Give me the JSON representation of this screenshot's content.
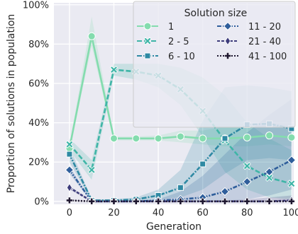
{
  "chart_data": {
    "type": "line",
    "xlabel": "Generation",
    "ylabel": "Proportion of solutions in population",
    "xlim": [
      -7,
      101
    ],
    "ylim": [
      -1.5,
      101
    ],
    "x_ticks": [
      0,
      20,
      40,
      60,
      80,
      100
    ],
    "y_ticks": [
      0,
      20,
      40,
      60,
      80,
      100
    ],
    "y_tick_labels": [
      "0%",
      "20%",
      "40%",
      "60%",
      "80%",
      "100%"
    ],
    "grid": true,
    "background": "#eaeaf2",
    "legend": {
      "title": "Solution size",
      "placement": "top-right",
      "columns": 2
    },
    "x": [
      0,
      10,
      20,
      30,
      40,
      50,
      60,
      70,
      80,
      90,
      100
    ],
    "series": [
      {
        "name": "1",
        "color": "#84dcae",
        "dash": "solid",
        "marker": "circle",
        "values": [
          27,
          84,
          32,
          32,
          32,
          33,
          32,
          32,
          32.5,
          33.5,
          32.5
        ],
        "band_lower": [
          26,
          79,
          31,
          31,
          31,
          30,
          29,
          28,
          28,
          29,
          28
        ],
        "band_upper": [
          28,
          94,
          33,
          33,
          33.5,
          36,
          36,
          38,
          38,
          39,
          38
        ]
      },
      {
        "name": "2 - 5",
        "color": "#3fb5a7",
        "dash": "dashed",
        "marker": "x",
        "values": [
          29,
          16,
          67,
          66,
          64,
          57,
          46,
          31,
          18,
          12,
          9
        ],
        "band_lower": [
          26,
          11,
          64,
          62,
          58,
          49,
          33,
          15,
          6,
          2,
          1
        ],
        "band_upper": [
          32,
          21,
          70,
          70,
          70,
          68,
          63,
          54,
          40,
          32,
          26
        ]
      },
      {
        "name": "6 - 10",
        "color": "#2e89a3",
        "dash": "dashdot",
        "marker": "square",
        "values": [
          24,
          0.5,
          0.5,
          1,
          3,
          7,
          19,
          32,
          39,
          39.5,
          37
        ],
        "band_lower": [
          20,
          0,
          0,
          0,
          1,
          2,
          6,
          14,
          21,
          22,
          21
        ],
        "band_upper": [
          28,
          1,
          1,
          2,
          6,
          16,
          41,
          58,
          59,
          58,
          56
        ]
      },
      {
        "name": "11 - 20",
        "color": "#2f5e9b",
        "dash": "dashdotdot",
        "marker": "diamond",
        "values": [
          16,
          0,
          0,
          0,
          0.5,
          1,
          2,
          5,
          10,
          15,
          21
        ],
        "band_lower": [
          14,
          0,
          0,
          0,
          0,
          0,
          0,
          0,
          1,
          3,
          6
        ],
        "band_upper": [
          18,
          0,
          0,
          0.5,
          1,
          5,
          13,
          24,
          35,
          44,
          52
        ]
      },
      {
        "name": "21 - 40",
        "color": "#3d3c7b",
        "dash": "dense",
        "marker": "thin-diamond",
        "values": [
          7,
          0,
          0,
          0,
          0,
          0,
          0,
          0,
          0,
          0,
          0.5
        ],
        "band_lower": [
          6,
          0,
          0,
          0,
          0,
          0,
          0,
          0,
          0,
          0,
          0
        ],
        "band_upper": [
          8,
          0,
          0,
          0,
          0,
          0,
          0,
          0.5,
          1,
          2,
          3
        ]
      },
      {
        "name": "41 - 100",
        "color": "#1e1730",
        "dash": "dotted",
        "marker": "plus",
        "values": [
          0.5,
          0,
          0,
          0,
          0,
          0,
          0,
          0,
          0,
          0,
          0
        ],
        "band_lower": [
          0,
          0,
          0,
          0,
          0,
          0,
          0,
          0,
          0,
          0,
          0
        ],
        "band_upper": [
          1,
          0,
          0,
          0,
          0,
          0,
          0,
          0,
          0,
          0,
          0
        ]
      }
    ]
  }
}
